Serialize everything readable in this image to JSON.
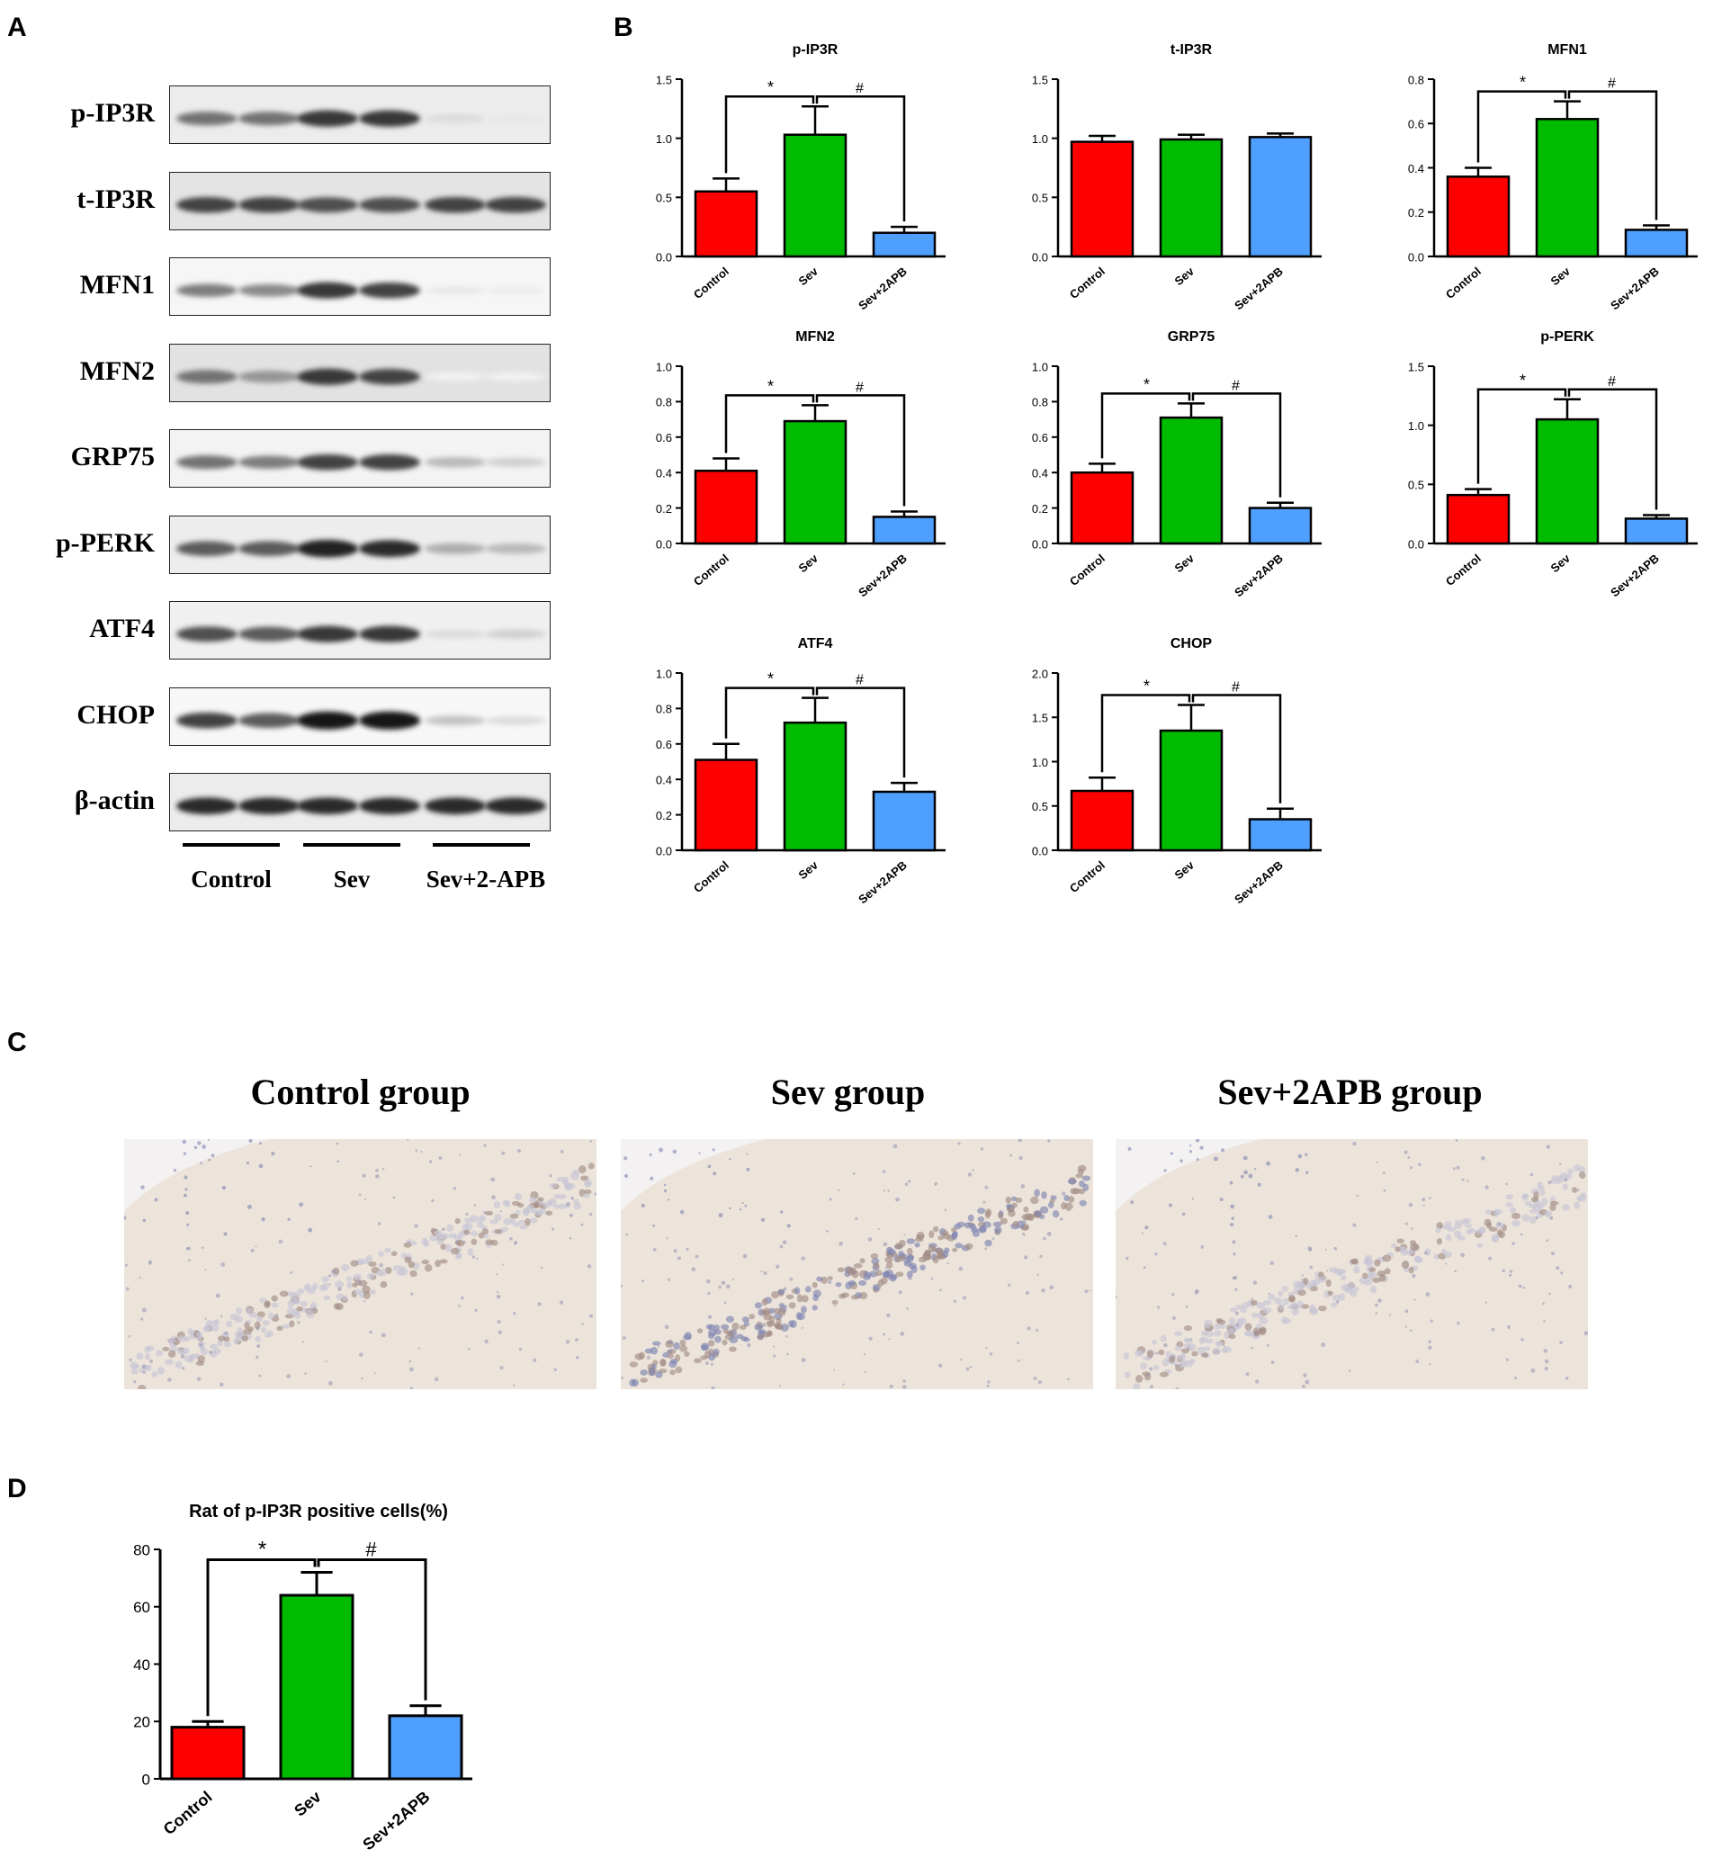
{
  "panels": {
    "a": "A",
    "b": "B",
    "c": "C",
    "d": "D"
  },
  "blot": {
    "proteins": [
      "p-IP3R",
      "t-IP3R",
      "MFN1",
      "MFN2",
      "GRP75",
      "p-PERK",
      "ATF4",
      "CHOP",
      "β-actin"
    ],
    "band_intensity": [
      [
        0.6,
        0.6,
        0.85,
        0.85,
        0.15,
        0.1
      ],
      [
        0.8,
        0.8,
        0.75,
        0.75,
        0.8,
        0.8
      ],
      [
        0.55,
        0.5,
        0.85,
        0.8,
        0.1,
        0.08
      ],
      [
        0.6,
        0.45,
        0.85,
        0.8,
        0.05,
        0.05
      ],
      [
        0.6,
        0.55,
        0.8,
        0.8,
        0.3,
        0.2
      ],
      [
        0.7,
        0.7,
        0.95,
        0.9,
        0.35,
        0.3
      ],
      [
        0.75,
        0.7,
        0.85,
        0.85,
        0.15,
        0.2
      ],
      [
        0.8,
        0.7,
        1.0,
        1.0,
        0.25,
        0.15
      ],
      [
        0.9,
        0.9,
        0.9,
        0.9,
        0.9,
        0.9
      ]
    ],
    "groups": [
      "Control",
      "Sev",
      "Sev+2-APB"
    ]
  },
  "ihc": {
    "titles": [
      "Control group",
      "Sev group",
      "Sev+2APB group"
    ],
    "colors": {
      "background": "#ece4da",
      "nuclei": "#7f84b0",
      "stain": "#a38e86"
    },
    "stain_level": [
      0.0,
      0.55,
      0.15
    ]
  },
  "chart_data": [
    {
      "type": "bar",
      "title": "p-IP3R",
      "categories": [
        "Control",
        "Sev",
        "Sev+2APB"
      ],
      "values": [
        0.55,
        1.03,
        0.2
      ],
      "errors": [
        0.11,
        0.24,
        0.05
      ],
      "ylim": [
        0,
        1.5
      ],
      "yticks": [
        "0.0",
        "0.5",
        "1.0",
        "1.5"
      ],
      "sig": [
        "*",
        "#"
      ],
      "colors": [
        "#ff0000",
        "#00bb00",
        "#4f9fff"
      ]
    },
    {
      "type": "bar",
      "title": "t-IP3R",
      "categories": [
        "Control",
        "Sev",
        "Sev+2APB"
      ],
      "values": [
        0.97,
        0.99,
        1.01
      ],
      "errors": [
        0.05,
        0.04,
        0.03
      ],
      "ylim": [
        0,
        1.5
      ],
      "yticks": [
        "0.0",
        "0.5",
        "1.0",
        "1.5"
      ],
      "sig": [],
      "colors": [
        "#ff0000",
        "#00bb00",
        "#4f9fff"
      ]
    },
    {
      "type": "bar",
      "title": "MFN1",
      "categories": [
        "Control",
        "Sev",
        "Sev+2APB"
      ],
      "values": [
        0.36,
        0.62,
        0.12
      ],
      "errors": [
        0.04,
        0.08,
        0.02
      ],
      "ylim": [
        0,
        0.8
      ],
      "yticks": [
        "0.0",
        "0.2",
        "0.4",
        "0.6",
        "0.8"
      ],
      "sig": [
        "*",
        "#"
      ],
      "colors": [
        "#ff0000",
        "#00bb00",
        "#4f9fff"
      ]
    },
    {
      "type": "bar",
      "title": "MFN2",
      "categories": [
        "Control",
        "Sev",
        "Sev+2APB"
      ],
      "values": [
        0.41,
        0.69,
        0.15
      ],
      "errors": [
        0.07,
        0.09,
        0.03
      ],
      "ylim": [
        0,
        1.0
      ],
      "yticks": [
        "0.0",
        "0.2",
        "0.4",
        "0.6",
        "0.8",
        "1.0"
      ],
      "sig": [
        "*",
        "#"
      ],
      "colors": [
        "#ff0000",
        "#00bb00",
        "#4f9fff"
      ]
    },
    {
      "type": "bar",
      "title": "GRP75",
      "categories": [
        "Control",
        "Sev",
        "Sev+2APB"
      ],
      "values": [
        0.4,
        0.71,
        0.2
      ],
      "errors": [
        0.05,
        0.08,
        0.03
      ],
      "ylim": [
        0,
        1.0
      ],
      "yticks": [
        "0.0",
        "0.2",
        "0.4",
        "0.6",
        "0.8",
        "1.0"
      ],
      "sig": [
        "*",
        "#"
      ],
      "colors": [
        "#ff0000",
        "#00bb00",
        "#4f9fff"
      ]
    },
    {
      "type": "bar",
      "title": "p-PERK",
      "categories": [
        "Control",
        "Sev",
        "Sev+2APB"
      ],
      "values": [
        0.41,
        1.05,
        0.21
      ],
      "errors": [
        0.05,
        0.17,
        0.03
      ],
      "ylim": [
        0,
        1.5
      ],
      "yticks": [
        "0.0",
        "0.5",
        "1.0",
        "1.5"
      ],
      "sig": [
        "*",
        "#"
      ],
      "colors": [
        "#ff0000",
        "#00bb00",
        "#4f9fff"
      ]
    },
    {
      "type": "bar",
      "title": "ATF4",
      "categories": [
        "Control",
        "Sev",
        "Sev+2APB"
      ],
      "values": [
        0.51,
        0.72,
        0.33
      ],
      "errors": [
        0.09,
        0.14,
        0.05
      ],
      "ylim": [
        0,
        1.0
      ],
      "yticks": [
        "0.0",
        "0.2",
        "0.4",
        "0.6",
        "0.8",
        "1.0"
      ],
      "sig": [
        "*",
        "#"
      ],
      "colors": [
        "#ff0000",
        "#00bb00",
        "#4f9fff"
      ]
    },
    {
      "type": "bar",
      "title": "CHOP",
      "categories": [
        "Control",
        "Sev",
        "Sev+2APB"
      ],
      "values": [
        0.67,
        1.35,
        0.35
      ],
      "errors": [
        0.15,
        0.29,
        0.12
      ],
      "ylim": [
        0,
        2.0
      ],
      "yticks": [
        "0.0",
        "0.5",
        "1.0",
        "1.5",
        "2.0"
      ],
      "sig": [
        "*",
        "#"
      ],
      "colors": [
        "#ff0000",
        "#00bb00",
        "#4f9fff"
      ]
    },
    {
      "type": "bar",
      "title": "Rat of p-IP3R positive cells(%)",
      "categories": [
        "Control",
        "Sev",
        "Sev+2APB"
      ],
      "values": [
        18,
        64,
        22
      ],
      "errors": [
        2,
        8,
        3.5
      ],
      "ylim": [
        0,
        80
      ],
      "yticks": [
        "0",
        "20",
        "40",
        "60",
        "80"
      ],
      "sig": [
        "*",
        "#"
      ],
      "colors": [
        "#ff0000",
        "#00bb00",
        "#4f9fff"
      ]
    }
  ]
}
